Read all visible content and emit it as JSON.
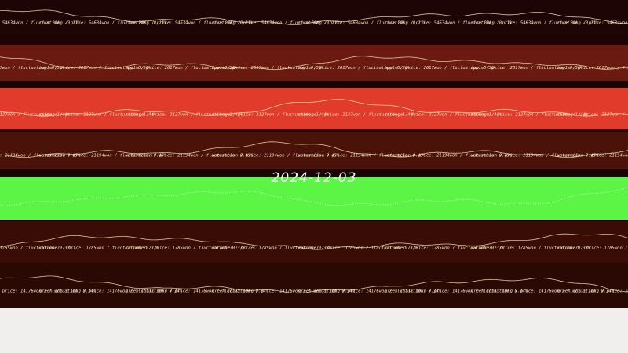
{
  "date": "2024-12-03",
  "bands": [
    {
      "label": "rice 20kg / price: 54634won / fluctuation: -0.11%",
      "color": "#1e0505"
    },
    {
      "label": "apple / price: 2617won / fluctuation: 0.56%",
      "color": "#6a1a10"
    },
    {
      "label": "cabbage / price: 2127won / fluctuation: 1.44%",
      "color": "#e03b2b"
    },
    {
      "label": "watermelon / price: 21194won / fluctuation: 0.45%",
      "color": "#4a1208"
    },
    {
      "color": "#5cf545"
    },
    {
      "label": "cucumber / price: 1785won / fluctuation: 0.37%",
      "color": "#3a0c06"
    },
    {
      "label": "green chili 10kg / price: 14176won / fluctuation: 0.34%",
      "color": "#2a0804"
    }
  ]
}
